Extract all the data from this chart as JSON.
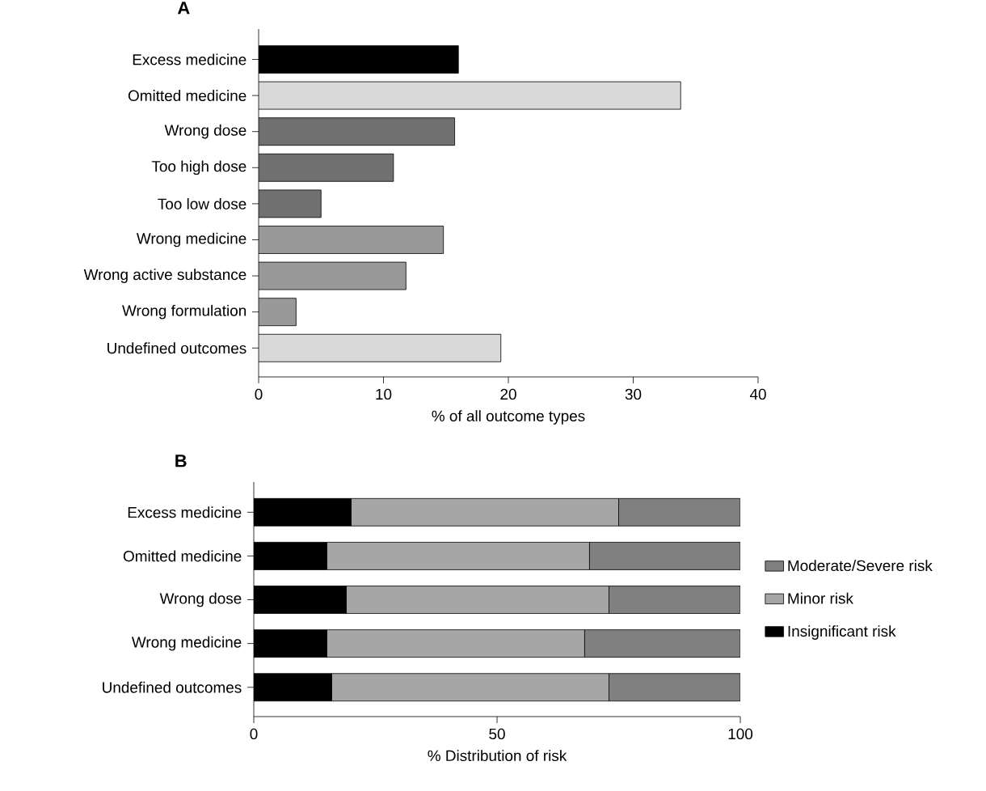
{
  "chart_data": [
    {
      "type": "bar",
      "orientation": "horizontal",
      "title": "A",
      "xlabel": "% of all outcome types",
      "categories": [
        "Excess medicine",
        "Omitted medicine",
        "Wrong dose",
        "Too high dose",
        "Too low dose",
        "Wrong medicine",
        "Wrong active substance",
        "Wrong formulation",
        "Undefined outcomes"
      ],
      "values": [
        16,
        33.8,
        15.7,
        10.8,
        5.0,
        14.8,
        11.8,
        3.0,
        19.4
      ],
      "colors": [
        "#000000",
        "#d9d9d9",
        "#707070",
        "#707070",
        "#707070",
        "#999999",
        "#999999",
        "#999999",
        "#d9d9d9"
      ],
      "xlim": [
        0,
        40
      ],
      "xticks": [
        0,
        10,
        20,
        30,
        40
      ]
    },
    {
      "type": "bar",
      "orientation": "horizontal",
      "stacked": true,
      "title": "B",
      "xlabel": "% Distribution of risk",
      "categories": [
        "Excess medicine",
        "Omitted medicine",
        "Wrong dose",
        "Wrong medicine",
        "Undefined outcomes"
      ],
      "series": [
        {
          "name": "Insignificant risk",
          "color": "#000000",
          "values": [
            20,
            15,
            19,
            15,
            16
          ]
        },
        {
          "name": "Minor risk",
          "color": "#a6a6a6",
          "values": [
            55,
            54,
            54,
            53,
            57
          ]
        },
        {
          "name": "Moderate/Severe risk",
          "color": "#808080",
          "values": [
            25,
            31,
            27,
            32,
            27
          ]
        }
      ],
      "xlim": [
        0,
        100
      ],
      "xticks": [
        0,
        50,
        100
      ],
      "legend": "right"
    }
  ]
}
